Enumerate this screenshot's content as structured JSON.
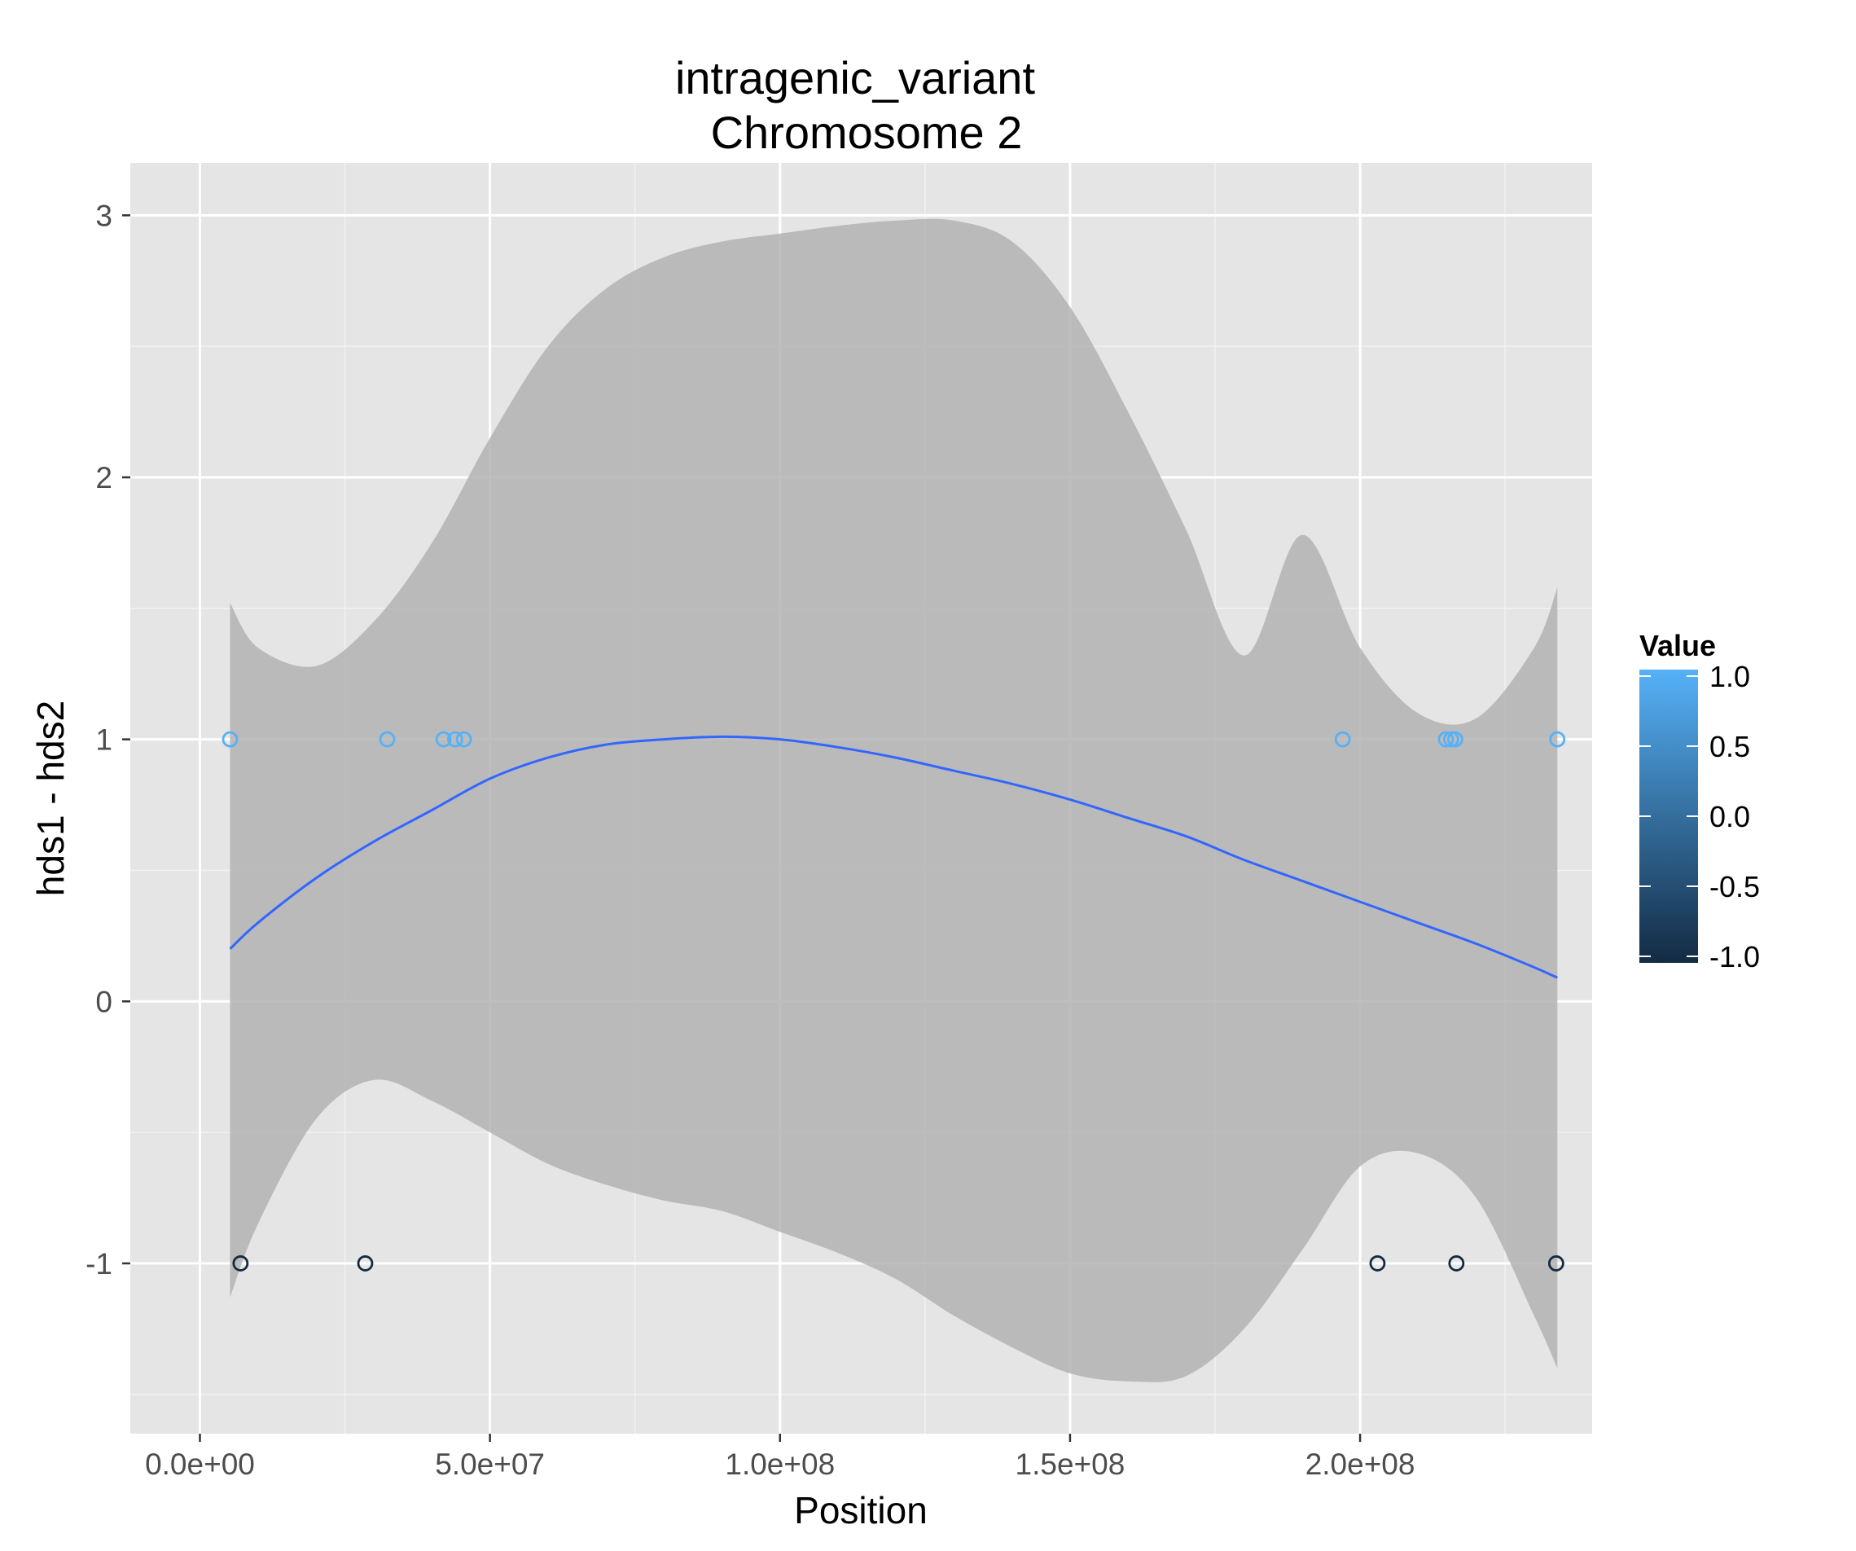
{
  "chart_data": {
    "type": "scatter",
    "title_lines": [
      "intragenic_variant",
      "Chromosome 2"
    ],
    "xlabel": "Position",
    "ylabel": "hds1 - hds2",
    "xlim": [
      -12000000,
      240000000
    ],
    "ylim": [
      -1.65,
      3.2
    ],
    "x_ticks": [
      0,
      50000000,
      100000000,
      150000000,
      200000000
    ],
    "x_tick_labels": [
      "0.0e+00",
      "5.0e+07",
      "1.0e+08",
      "1.5e+08",
      "2.0e+08"
    ],
    "y_ticks": [
      -1,
      0,
      1,
      2,
      3
    ],
    "y_tick_labels": [
      "-1",
      "0",
      "1",
      "2",
      "3"
    ],
    "grid": true,
    "points": [
      {
        "x": 5200000,
        "y": 1,
        "value": 1
      },
      {
        "x": 32300000,
        "y": 1,
        "value": 1
      },
      {
        "x": 42000000,
        "y": 1,
        "value": 1
      },
      {
        "x": 44000000,
        "y": 1,
        "value": 1
      },
      {
        "x": 45500000,
        "y": 1,
        "value": 1
      },
      {
        "x": 197000000,
        "y": 1,
        "value": 1
      },
      {
        "x": 214800000,
        "y": 1,
        "value": 1
      },
      {
        "x": 215700000,
        "y": 1,
        "value": 1
      },
      {
        "x": 216400000,
        "y": 1,
        "value": 1
      },
      {
        "x": 234000000,
        "y": 1,
        "value": 1
      },
      {
        "x": 7000000,
        "y": -1,
        "value": -1
      },
      {
        "x": 28500000,
        "y": -1,
        "value": -1
      },
      {
        "x": 203000000,
        "y": -1,
        "value": -1
      },
      {
        "x": 216600000,
        "y": -1,
        "value": -1
      },
      {
        "x": 233800000,
        "y": -1,
        "value": -1
      }
    ],
    "smooth": {
      "x": [
        5200000,
        10000000,
        20000000,
        30000000,
        40000000,
        50000000,
        60000000,
        70000000,
        80000000,
        90000000,
        100000000,
        110000000,
        120000000,
        130000000,
        140000000,
        150000000,
        160000000,
        170000000,
        180000000,
        190000000,
        200000000,
        210000000,
        220000000,
        230000000,
        234000000
      ],
      "y": [
        0.2,
        0.3,
        0.47,
        0.61,
        0.73,
        0.85,
        0.93,
        0.98,
        1.0,
        1.01,
        1.0,
        0.97,
        0.93,
        0.88,
        0.83,
        0.77,
        0.7,
        0.63,
        0.54,
        0.46,
        0.38,
        0.3,
        0.22,
        0.13,
        0.09
      ],
      "upper": [
        1.52,
        1.35,
        1.28,
        1.45,
        1.75,
        2.15,
        2.5,
        2.72,
        2.84,
        2.9,
        2.93,
        2.96,
        2.98,
        2.98,
        2.9,
        2.65,
        2.25,
        1.8,
        1.32,
        1.78,
        1.35,
        1.1,
        1.08,
        1.35,
        1.58
      ],
      "lower": [
        -1.13,
        -0.85,
        -0.45,
        -0.3,
        -0.38,
        -0.5,
        -0.62,
        -0.7,
        -0.76,
        -0.8,
        -0.88,
        -0.96,
        -1.06,
        -1.2,
        -1.32,
        -1.42,
        -1.45,
        -1.43,
        -1.25,
        -0.95,
        -0.63,
        -0.58,
        -0.75,
        -1.2,
        -1.4
      ]
    },
    "legend": {
      "title": "Value",
      "position": "right",
      "min": -1.0,
      "max": 1.0,
      "ticks": [
        1.0,
        0.5,
        0.0,
        -0.5,
        -1.0
      ],
      "tick_labels": [
        "1.0",
        "0.5",
        "0.0",
        "-0.5",
        "-1.0"
      ],
      "low_color": "#132B43",
      "high_color": "#56B1F7"
    },
    "colors": {
      "panel_bg": "#E5E5E5",
      "grid_major": "#FFFFFF",
      "grid_minor": "#F2F2F2",
      "ribbon": "#B3B3B3",
      "smooth_line": "#3366FF",
      "axis_text": "#4D4D4D"
    }
  }
}
